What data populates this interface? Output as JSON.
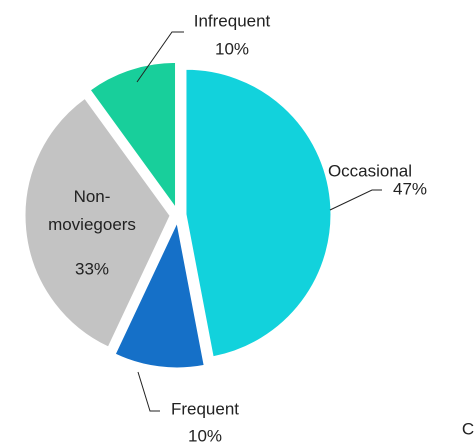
{
  "chart_data": {
    "type": "pie",
    "categories": [
      "Occasional",
      "Frequent",
      "Non-moviegoers",
      "Infrequent"
    ],
    "values": [
      47,
      10,
      33,
      10
    ],
    "value_labels": [
      "47%",
      "10%",
      "33%",
      "10%"
    ],
    "colors": [
      "#12d2dc",
      "#1570c8",
      "#c3c3c3",
      "#18cf9b"
    ],
    "annotation": "C"
  }
}
